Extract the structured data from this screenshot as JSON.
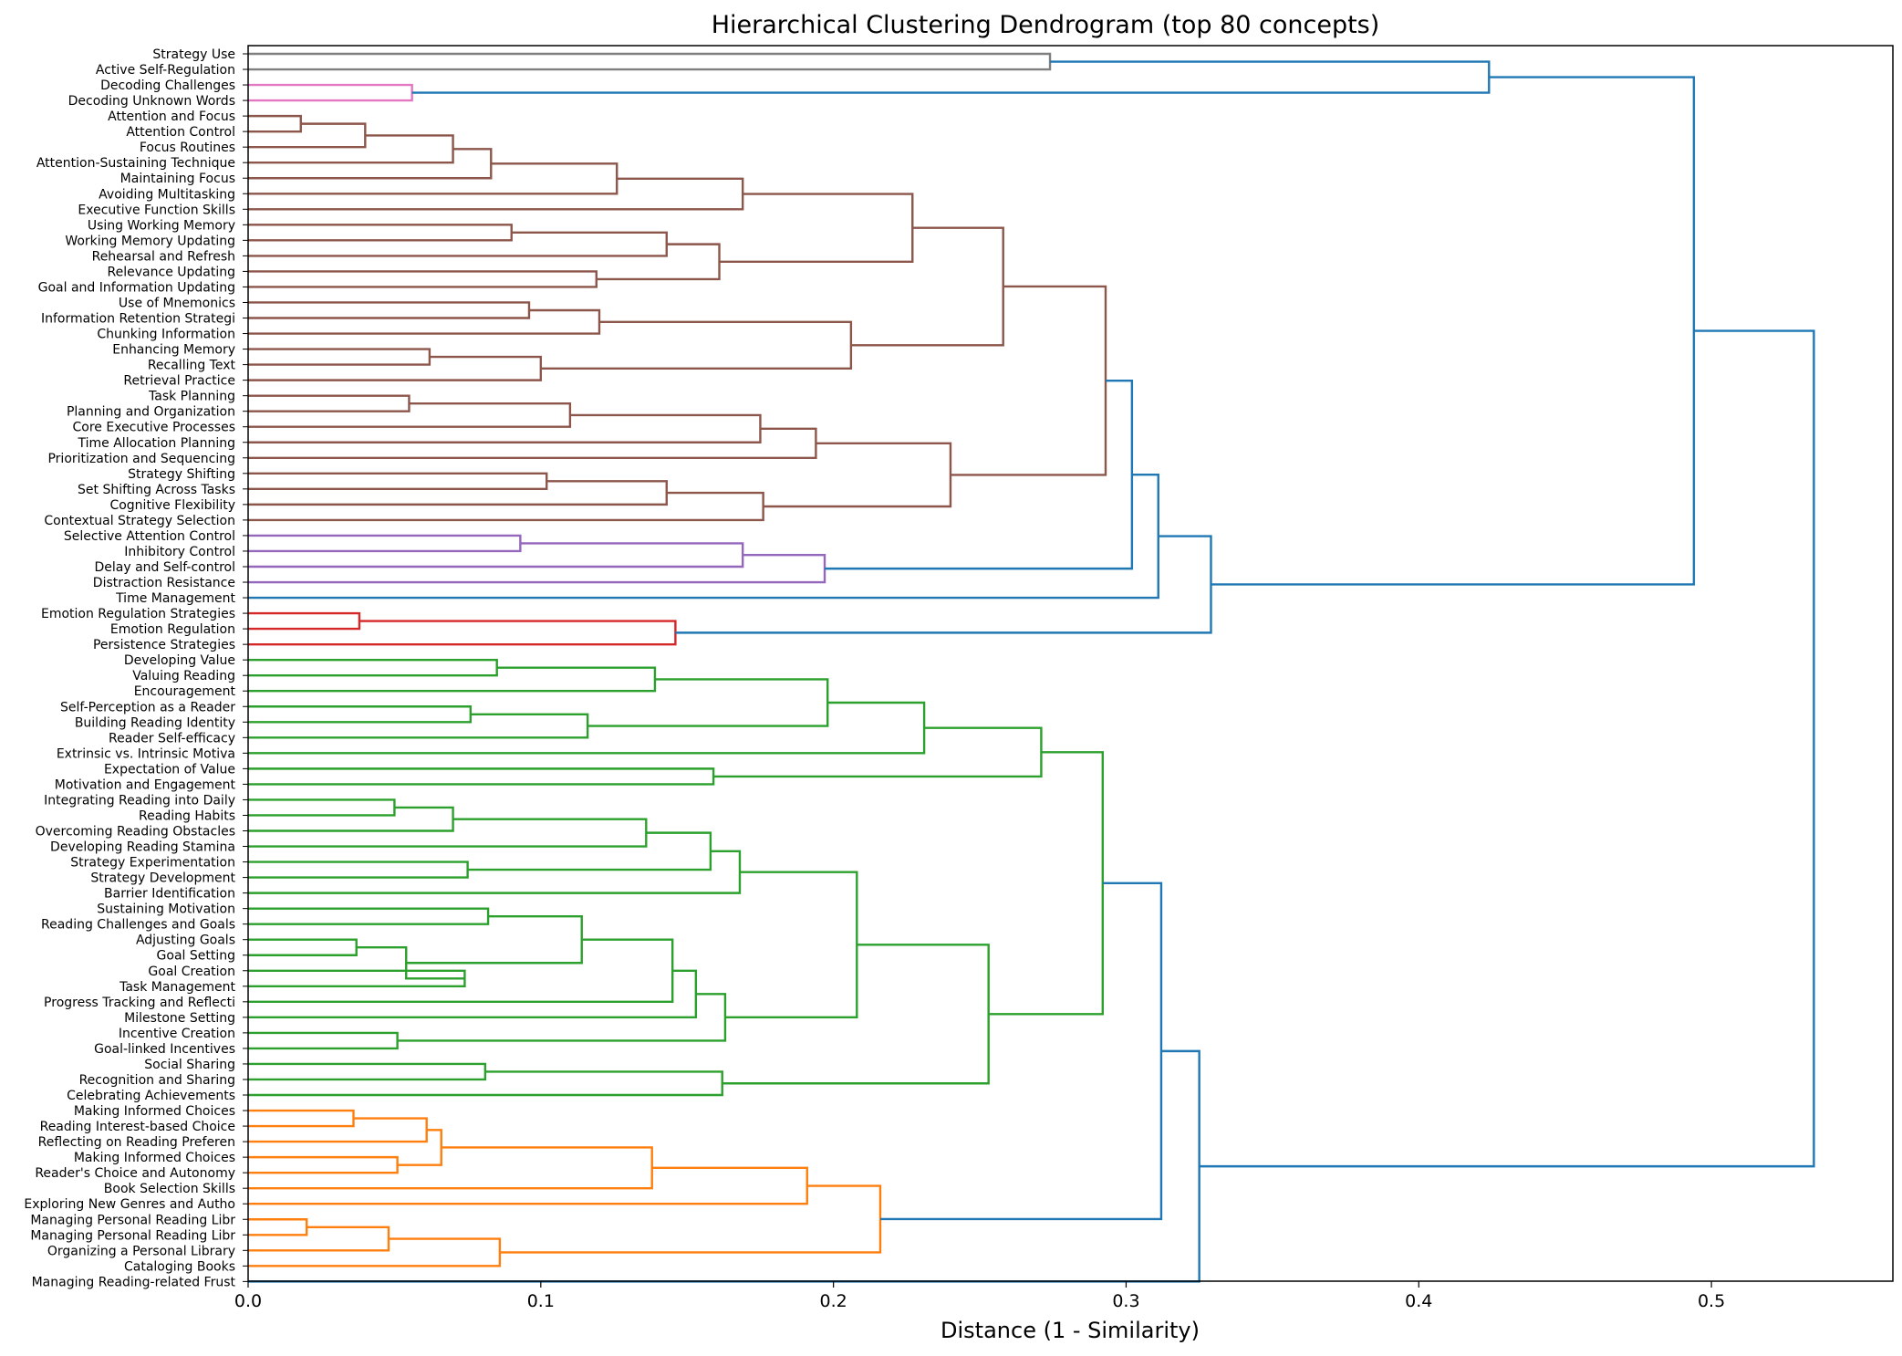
{
  "chart_data": {
    "type": "dendrogram",
    "title": "Hierarchical Clustering Dendrogram (top 80 concepts)",
    "xlabel": "Distance (1 - Similarity)",
    "ylabel": "",
    "xlim": [
      0,
      0.562
    ],
    "xticks": [
      0,
      0.1,
      0.2,
      0.3,
      0.4,
      0.5
    ],
    "xtick_labels": [
      "0.0",
      "0.1",
      "0.2",
      "0.3",
      "0.4",
      "0.5"
    ],
    "grid": false,
    "legend": "none",
    "colors": {
      "gray": "#7f7f7f",
      "pink": "#e377c2",
      "brown": "#8c564b",
      "purple": "#9467bd",
      "red": "#d62728",
      "green": "#2ca02c",
      "orange": "#ff7f0e",
      "blue": "#1f77b4"
    },
    "leaves": [
      "Strategy Use",
      "Active Self-Regulation",
      "Decoding Challenges",
      "Decoding Unknown Words",
      "Attention and Focus",
      "Attention Control",
      "Focus Routines",
      "Attention-Sustaining Technique",
      "Maintaining Focus",
      "Avoiding Multitasking",
      "Executive Function Skills",
      "Using Working Memory",
      "Working Memory Updating",
      "Rehearsal and Refresh",
      "Relevance Updating",
      "Goal and Information Updating",
      "Use of Mnemonics",
      "Information Retention Strategi",
      "Chunking Information",
      "Enhancing Memory",
      "Recalling Text",
      "Retrieval Practice",
      "Task Planning",
      "Planning and Organization",
      "Core Executive Processes",
      "Time Allocation Planning",
      "Prioritization and Sequencing",
      "Strategy Shifting",
      "Set Shifting Across Tasks",
      "Cognitive Flexibility",
      "Contextual Strategy Selection",
      "Selective Attention Control",
      "Inhibitory Control",
      "Delay and Self-control",
      "Distraction Resistance",
      "Time Management",
      "Emotion Regulation Strategies",
      "Emotion Regulation",
      "Persistence Strategies",
      "Developing Value",
      "Valuing Reading",
      "Encouragement",
      "Self-Perception as a Reader",
      "Building Reading Identity",
      "Reader Self-efficacy",
      "Extrinsic vs. Intrinsic Motiva",
      "Expectation of Value",
      "Motivation and Engagement",
      "Integrating Reading into Daily",
      "Reading Habits",
      "Overcoming Reading Obstacles",
      "Developing Reading Stamina",
      "Strategy Experimentation",
      "Strategy Development",
      "Barrier Identification",
      "Sustaining Motivation",
      "Reading Challenges and Goals",
      "Adjusting Goals",
      "Goal Setting",
      "Goal Creation",
      "Task Management",
      "Progress Tracking and Reflecti",
      "Milestone Setting",
      "Incentive Creation",
      "Goal-linked Incentives",
      "Social Sharing",
      "Recognition and Sharing",
      "Celebrating Achievements",
      "Making Informed Choices",
      "Reading Interest-based Choice",
      "Reflecting on Reading Preferen",
      "Making Informed Choices",
      "Reader's Choice and Autonomy",
      "Book Selection Skills",
      "Exploring New Genres and Autho",
      "Managing Personal Reading Libr",
      "Managing Personal Reading Libr",
      "Organizing a Personal Library",
      "Cataloging Books",
      "Managing Reading-related Frust"
    ],
    "merges": [
      {
        "id": "A1",
        "a": 0,
        "b": 1,
        "height": 0.274,
        "color": "gray"
      },
      {
        "id": "A2",
        "a": 2,
        "b": 3,
        "height": 0.056,
        "color": "pink"
      },
      {
        "id": "A3",
        "a": "A1",
        "b": "A2",
        "height": 0.424,
        "color": "blue"
      },
      {
        "id": "B1",
        "a": 4,
        "b": 5,
        "height": 0.018,
        "color": "brown"
      },
      {
        "id": "B2",
        "a": "B1",
        "b": 6,
        "height": 0.04,
        "color": "brown"
      },
      {
        "id": "B3",
        "a": "B2",
        "b": 7,
        "height": 0.07,
        "color": "brown"
      },
      {
        "id": "B4",
        "a": "B3",
        "b": 8,
        "height": 0.083,
        "color": "brown"
      },
      {
        "id": "B5",
        "a": "B4",
        "b": 9,
        "height": 0.126,
        "color": "brown"
      },
      {
        "id": "B6",
        "a": "B5",
        "b": 10,
        "height": 0.169,
        "color": "brown"
      },
      {
        "id": "B7",
        "a": 11,
        "b": 12,
        "height": 0.09,
        "color": "brown"
      },
      {
        "id": "B8",
        "a": "B7",
        "b": 13,
        "height": 0.143,
        "color": "brown"
      },
      {
        "id": "B9",
        "a": 14,
        "b": 15,
        "height": 0.119,
        "color": "brown"
      },
      {
        "id": "B10",
        "a": "B8",
        "b": "B9",
        "height": 0.161,
        "color": "brown"
      },
      {
        "id": "B11",
        "a": "B6",
        "b": "B10",
        "height": 0.227,
        "color": "brown"
      },
      {
        "id": "B12",
        "a": 16,
        "b": 17,
        "height": 0.096,
        "color": "brown"
      },
      {
        "id": "B13",
        "a": "B12",
        "b": 18,
        "height": 0.12,
        "color": "brown"
      },
      {
        "id": "B14",
        "a": 19,
        "b": 20,
        "height": 0.062,
        "color": "brown"
      },
      {
        "id": "B15",
        "a": "B14",
        "b": 21,
        "height": 0.1,
        "color": "brown"
      },
      {
        "id": "B16",
        "a": "B13",
        "b": "B15",
        "height": 0.206,
        "color": "brown"
      },
      {
        "id": "B17",
        "a": "B11",
        "b": "B16",
        "height": 0.258,
        "color": "brown"
      },
      {
        "id": "B18",
        "a": 22,
        "b": 23,
        "height": 0.055,
        "color": "brown"
      },
      {
        "id": "B19",
        "a": "B18",
        "b": 24,
        "height": 0.11,
        "color": "brown"
      },
      {
        "id": "B20",
        "a": "B19",
        "b": 25,
        "height": 0.175,
        "color": "brown"
      },
      {
        "id": "B21",
        "a": "B20",
        "b": 26,
        "height": 0.194,
        "color": "brown"
      },
      {
        "id": "B22",
        "a": 27,
        "b": 28,
        "height": 0.102,
        "color": "brown"
      },
      {
        "id": "B23",
        "a": "B22",
        "b": 29,
        "height": 0.143,
        "color": "brown"
      },
      {
        "id": "B24",
        "a": "B23",
        "b": 30,
        "height": 0.176,
        "color": "brown"
      },
      {
        "id": "B25",
        "a": "B21",
        "b": "B24",
        "height": 0.24,
        "color": "brown"
      },
      {
        "id": "B26",
        "a": "B17",
        "b": "B25",
        "height": 0.293,
        "color": "brown"
      },
      {
        "id": "P1",
        "a": 31,
        "b": 32,
        "height": 0.093,
        "color": "purple"
      },
      {
        "id": "P2",
        "a": "P1",
        "b": 33,
        "height": 0.169,
        "color": "purple"
      },
      {
        "id": "P3",
        "a": "P2",
        "b": 34,
        "height": 0.197,
        "color": "purple"
      },
      {
        "id": "C1",
        "a": "B26",
        "b": "P3",
        "height": 0.302,
        "color": "blue"
      },
      {
        "id": "C2",
        "a": "C1",
        "b": 35,
        "height": 0.311,
        "color": "blue"
      },
      {
        "id": "R1",
        "a": 36,
        "b": 37,
        "height": 0.038,
        "color": "red"
      },
      {
        "id": "R2",
        "a": "R1",
        "b": 38,
        "height": 0.146,
        "color": "red"
      },
      {
        "id": "C3",
        "a": "C2",
        "b": "R2",
        "height": 0.329,
        "color": "blue"
      },
      {
        "id": "C4",
        "a": "A3",
        "b": "C3",
        "height": 0.494,
        "color": "blue"
      },
      {
        "id": "G1",
        "a": 39,
        "b": 40,
        "height": 0.085,
        "color": "green"
      },
      {
        "id": "G2",
        "a": "G1",
        "b": 41,
        "height": 0.139,
        "color": "green"
      },
      {
        "id": "G3",
        "a": 42,
        "b": 43,
        "height": 0.076,
        "color": "green"
      },
      {
        "id": "G4",
        "a": "G3",
        "b": 44,
        "height": 0.116,
        "color": "green"
      },
      {
        "id": "G5",
        "a": "G2",
        "b": "G4",
        "height": 0.198,
        "color": "green"
      },
      {
        "id": "G6",
        "a": "G5",
        "b": 45,
        "height": 0.231,
        "color": "green"
      },
      {
        "id": "G7",
        "a": 46,
        "b": 47,
        "height": 0.159,
        "color": "green"
      },
      {
        "id": "G8",
        "a": "G6",
        "b": "G7",
        "height": 0.271,
        "color": "green"
      },
      {
        "id": "G9",
        "a": 48,
        "b": 49,
        "height": 0.05,
        "color": "green"
      },
      {
        "id": "G10",
        "a": "G9",
        "b": 50,
        "height": 0.07,
        "color": "green"
      },
      {
        "id": "G11",
        "a": "G10",
        "b": 51,
        "height": 0.136,
        "color": "green"
      },
      {
        "id": "G12",
        "a": 52,
        "b": 53,
        "height": 0.075,
        "color": "green"
      },
      {
        "id": "G13",
        "a": "G11",
        "b": "G12",
        "height": 0.158,
        "color": "green"
      },
      {
        "id": "G14",
        "a": "G13",
        "b": 54,
        "height": 0.168,
        "color": "green"
      },
      {
        "id": "G15",
        "a": 55,
        "b": 56,
        "height": 0.082,
        "color": "green"
      },
      {
        "id": "G16",
        "a": 57,
        "b": 58,
        "height": 0.037,
        "color": "green"
      },
      {
        "id": "G17",
        "a": 59,
        "b": 60,
        "height": 0.074,
        "color": "green"
      },
      {
        "id": "G18",
        "a": "G16",
        "b": "G17",
        "height": 0.054,
        "color": "green"
      },
      {
        "id": "G19",
        "a": "G15",
        "b": "G18",
        "height": 0.114,
        "color": "green"
      },
      {
        "id": "G20",
        "a": "G19",
        "b": 61,
        "height": 0.145,
        "color": "green"
      },
      {
        "id": "G21",
        "a": "G20",
        "b": 62,
        "height": 0.153,
        "color": "green"
      },
      {
        "id": "G22",
        "a": 63,
        "b": 64,
        "height": 0.051,
        "color": "green"
      },
      {
        "id": "G23",
        "a": "G21",
        "b": "G22",
        "height": 0.163,
        "color": "green"
      },
      {
        "id": "G24",
        "a": "G14",
        "b": "G23",
        "height": 0.208,
        "color": "green"
      },
      {
        "id": "G25",
        "a": 65,
        "b": 66,
        "height": 0.081,
        "color": "green"
      },
      {
        "id": "G26",
        "a": "G25",
        "b": 67,
        "height": 0.162,
        "color": "green"
      },
      {
        "id": "G27",
        "a": "G24",
        "b": "G26",
        "height": 0.253,
        "color": "green"
      },
      {
        "id": "G28",
        "a": "G8",
        "b": "G27",
        "height": 0.292,
        "color": "green"
      },
      {
        "id": "O1",
        "a": 68,
        "b": 69,
        "height": 0.036,
        "color": "orange"
      },
      {
        "id": "O2",
        "a": "O1",
        "b": 70,
        "height": 0.061,
        "color": "orange"
      },
      {
        "id": "O3",
        "a": 71,
        "b": 72,
        "height": 0.051,
        "color": "orange"
      },
      {
        "id": "O4",
        "a": "O2",
        "b": "O3",
        "height": 0.066,
        "color": "orange"
      },
      {
        "id": "O5",
        "a": "O4",
        "b": 73,
        "height": 0.138,
        "color": "orange"
      },
      {
        "id": "O6",
        "a": "O5",
        "b": 74,
        "height": 0.191,
        "color": "orange"
      },
      {
        "id": "O7",
        "a": 75,
        "b": 76,
        "height": 0.02,
        "color": "orange"
      },
      {
        "id": "O8",
        "a": "O7",
        "b": 77,
        "height": 0.048,
        "color": "orange"
      },
      {
        "id": "O9",
        "a": "O8",
        "b": 78,
        "height": 0.086,
        "color": "orange"
      },
      {
        "id": "O10",
        "a": "O6",
        "b": "O9",
        "height": 0.216,
        "color": "orange"
      },
      {
        "id": "D1",
        "a": "G28",
        "b": "O10",
        "height": 0.312,
        "color": "blue"
      },
      {
        "id": "D2",
        "a": "D1",
        "b": 79,
        "height": 0.325,
        "color": "blue"
      },
      {
        "id": "D3",
        "a": "C4",
        "b": "D2",
        "height": 0.535,
        "color": "blue"
      }
    ]
  }
}
